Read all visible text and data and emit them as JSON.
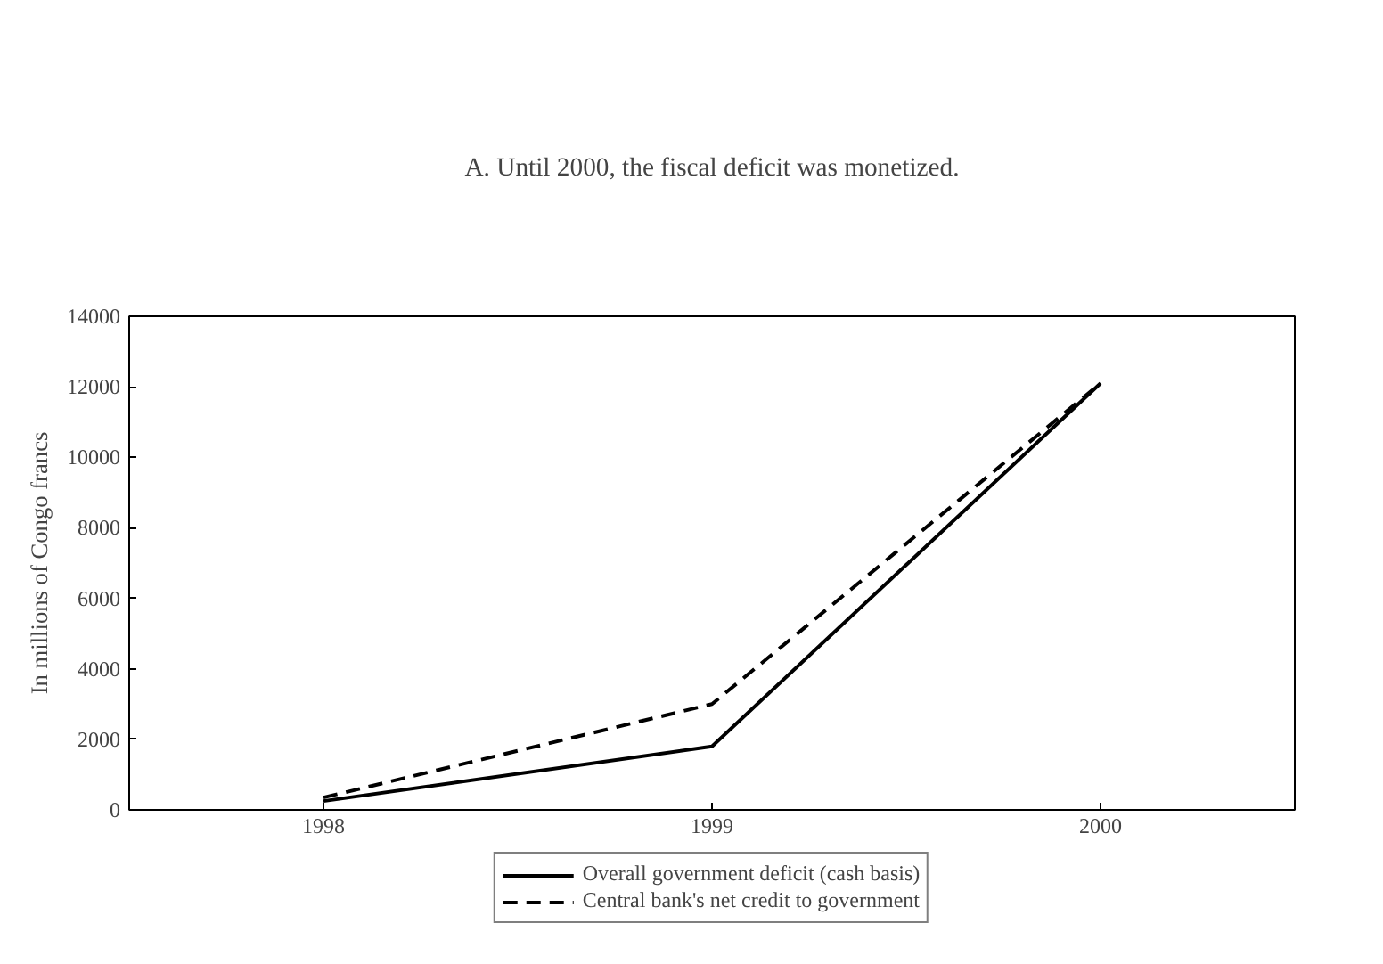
{
  "chart_data": {
    "type": "line",
    "title": "A. Until 2000, the fiscal deficit was monetized.",
    "ylabel": "In millions of Congo francs",
    "categories": [
      "1998",
      "1999",
      "2000"
    ],
    "series": [
      {
        "name": "Overall government deficit (cash basis)",
        "color": "#000000",
        "values": [
          250,
          1800,
          12100
        ],
        "line_style": "solid"
      },
      {
        "name": "Central bank's net credit to government",
        "color": "#000000",
        "values": [
          350,
          3000,
          12100
        ],
        "line_style": "dashed"
      }
    ],
    "ylim": [
      0,
      14000
    ],
    "yticks": [
      0,
      2000,
      4000,
      6000,
      8000,
      10000,
      12000,
      14000
    ],
    "grid": false,
    "legend": "bottom",
    "marker": "none"
  }
}
